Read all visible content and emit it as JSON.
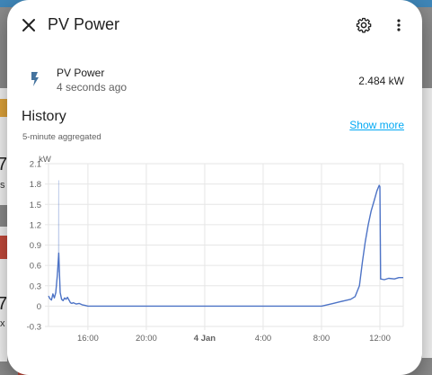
{
  "dialog": {
    "title": "PV Power",
    "close_icon": "close-icon",
    "settings_icon": "gear-icon",
    "more_icon": "more-vertical-icon"
  },
  "entity": {
    "icon": "lightning-bolt-icon",
    "name": "PV Power",
    "last_changed": "4 seconds ago",
    "value": "2.484 kW"
  },
  "history": {
    "title": "History",
    "subtitle": "5-minute aggregated",
    "show_more": "Show more"
  },
  "background": {
    "left_text_1": "7",
    "left_text_2": "7",
    "left_small_1": "s",
    "left_small_2": "x"
  },
  "chart_data": {
    "type": "line",
    "ylabel": "kW",
    "ylim": [
      -0.3,
      2.1
    ],
    "yticks": [
      2.1,
      1.8,
      1.5,
      1.2,
      0.9,
      0.6,
      0.3,
      0,
      -0.3
    ],
    "ytick_labels": [
      "2.1",
      "1.8",
      "1.5",
      "1.2",
      "0.9",
      "0.6",
      "0.3",
      "0",
      "-0.3"
    ],
    "x_range_hours": [
      13.3,
      37.6
    ],
    "xticks": [
      {
        "hour": 16,
        "label": "16:00",
        "bold": false
      },
      {
        "hour": 20,
        "label": "20:00",
        "bold": false
      },
      {
        "hour": 24,
        "label": "4 Jan",
        "bold": true
      },
      {
        "hour": 28,
        "label": "4:00",
        "bold": false
      },
      {
        "hour": 32,
        "label": "8:00",
        "bold": false
      },
      {
        "hour": 36,
        "label": "12:00",
        "bold": false
      }
    ],
    "grid": true,
    "color": "#4d73c6",
    "series": [
      {
        "x": [
          13.3,
          13.4,
          13.5,
          13.6,
          13.7,
          13.8,
          13.9,
          14.0,
          14.1,
          14.2,
          14.3,
          14.4,
          14.5,
          14.6,
          14.7,
          14.8,
          14.9,
          15.0,
          15.2,
          15.4,
          15.6,
          15.8,
          16.0,
          17.0,
          20.0,
          24.0,
          28.0,
          31.5,
          32.0,
          32.4,
          32.8,
          33.2,
          33.6,
          34.0,
          34.3,
          34.6,
          34.8,
          35.0,
          35.2,
          35.4,
          35.6,
          35.8,
          35.95,
          36.0,
          36.05,
          36.3,
          36.6,
          37.0,
          37.3,
          37.6
        ],
        "y": [
          0.15,
          0.11,
          0.09,
          0.18,
          0.12,
          0.2,
          0.45,
          0.78,
          0.2,
          0.1,
          0.08,
          0.12,
          0.1,
          0.13,
          0.09,
          0.05,
          0.04,
          0.05,
          0.03,
          0.04,
          0.02,
          0.01,
          0.0,
          0.0,
          0.0,
          0.0,
          0.0,
          0.0,
          0.0,
          0.02,
          0.04,
          0.06,
          0.08,
          0.1,
          0.14,
          0.3,
          0.65,
          0.95,
          1.2,
          1.4,
          1.55,
          1.7,
          1.78,
          1.76,
          0.4,
          0.39,
          0.41,
          0.4,
          0.42,
          0.42
        ]
      },
      {
        "x": [
          13.98,
          14.0,
          14.02
        ],
        "y": [
          0.5,
          1.85,
          0.5
        ]
      }
    ]
  }
}
